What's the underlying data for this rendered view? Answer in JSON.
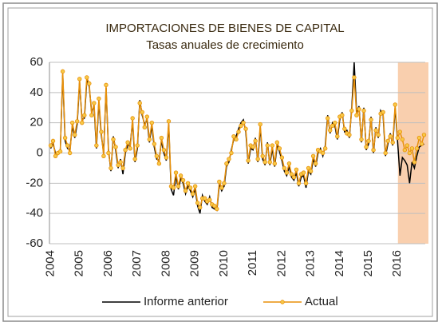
{
  "chart_data": {
    "type": "line",
    "title": "IMPORTACIONES DE BIENES DE CAPITAL",
    "subtitle": "Tasas anuales de crecimiento",
    "categories": [
      "2004",
      null,
      null,
      null,
      null,
      null,
      null,
      null,
      null,
      null,
      null,
      null,
      "2005",
      null,
      null,
      null,
      null,
      null,
      null,
      null,
      null,
      null,
      null,
      null,
      "2006",
      null,
      null,
      null,
      null,
      null,
      null,
      null,
      null,
      null,
      null,
      null,
      "2007",
      null,
      null,
      null,
      null,
      null,
      null,
      null,
      null,
      null,
      null,
      null,
      "2008",
      null,
      null,
      null,
      null,
      null,
      null,
      null,
      null,
      null,
      null,
      null,
      "2009",
      null,
      null,
      null,
      null,
      null,
      null,
      null,
      null,
      null,
      null,
      null,
      "2010",
      null,
      null,
      null,
      null,
      null,
      null,
      null,
      null,
      null,
      null,
      null,
      "2011",
      null,
      null,
      null,
      null,
      null,
      null,
      null,
      null,
      null,
      null,
      null,
      "2012",
      null,
      null,
      null,
      null,
      null,
      null,
      null,
      null,
      null,
      null,
      null,
      "2013",
      null,
      null,
      null,
      null,
      null,
      null,
      null,
      null,
      null,
      null,
      null,
      "2014",
      null,
      null,
      null,
      null,
      null,
      null,
      null,
      null,
      null,
      null,
      null,
      "2015",
      null,
      null,
      null,
      null,
      null,
      null,
      null,
      null,
      null,
      null,
      null,
      "2016",
      null,
      null,
      null,
      null,
      null,
      null,
      null,
      null,
      null,
      null,
      null
    ],
    "series": [
      {
        "name": "Informe anterior",
        "color": "#000000",
        "marker": false,
        "values": [
          3,
          6,
          0,
          -1,
          2,
          52,
          8,
          3,
          2,
          18,
          10,
          19,
          47,
          22,
          23,
          48,
          44,
          27,
          31,
          3,
          34,
          12,
          0,
          43,
          2,
          -12,
          11,
          2,
          -10,
          -4,
          -14,
          0,
          5,
          5,
          21,
          -6,
          3,
          35,
          25,
          19,
          22,
          7,
          18,
          4,
          -4,
          -5,
          8,
          0,
          -5,
          19,
          -24,
          -28,
          -15,
          -24,
          -17,
          -20,
          -27,
          -22,
          -25,
          -29,
          -24,
          -35,
          -40,
          -28,
          -32,
          -34,
          -29,
          -36,
          -37,
          -38,
          -21,
          -25,
          -22,
          -9,
          -6,
          2,
          9,
          11,
          16,
          20,
          22,
          14,
          -7,
          3,
          2,
          10,
          -6,
          17,
          -4,
          -8,
          7,
          -8,
          3,
          -9,
          5,
          1,
          -5,
          -12,
          -15,
          -9,
          -16,
          -18,
          -13,
          -22,
          -16,
          -15,
          -23,
          -12,
          -14,
          -4,
          -9,
          0,
          3,
          -2,
          5,
          25,
          13,
          20,
          18,
          9,
          22,
          27,
          14,
          15,
          10,
          30,
          60,
          27,
          31,
          7,
          30,
          2,
          6,
          24,
          0,
          17,
          10,
          28,
          25,
          -2,
          6,
          13,
          5,
          30,
          8,
          -15,
          -3,
          -5,
          -8,
          -20,
          -6,
          -10,
          -2,
          4,
          5,
          6
        ]
      },
      {
        "name": "Actual",
        "color": "#e8900a",
        "marker": true,
        "values": [
          5,
          8,
          -2,
          0,
          1,
          54,
          10,
          5,
          0,
          20,
          12,
          21,
          49,
          20,
          25,
          50,
          46,
          25,
          33,
          5,
          36,
          14,
          -2,
          45,
          0,
          -10,
          9,
          4,
          -8,
          -6,
          -10,
          2,
          7,
          3,
          23,
          -4,
          5,
          33,
          27,
          17,
          24,
          9,
          20,
          6,
          -2,
          -7,
          10,
          2,
          -3,
          21,
          -22,
          -23,
          -13,
          -22,
          -15,
          -18,
          -25,
          -20,
          -23,
          -27,
          -22,
          -33,
          -36,
          -30,
          -30,
          -32,
          -31,
          -34,
          -35,
          -37,
          -19,
          -23,
          -20,
          -7,
          -4,
          0,
          11,
          9,
          14,
          18,
          20,
          16,
          -5,
          5,
          4,
          8,
          -4,
          19,
          -2,
          -6,
          5,
          -6,
          5,
          -7,
          7,
          3,
          -3,
          -10,
          -13,
          -7,
          -14,
          -16,
          -11,
          -20,
          -14,
          -13,
          -20,
          -10,
          -12,
          -2,
          -7,
          2,
          1,
          0,
          3,
          23,
          15,
          18,
          20,
          11,
          24,
          25,
          16,
          13,
          12,
          28,
          50,
          25,
          29,
          9,
          28,
          4,
          8,
          22,
          2,
          15,
          12,
          26,
          27,
          0,
          8,
          11,
          7,
          32,
          10,
          14,
          9,
          2,
          5,
          0,
          3,
          -6,
          3,
          10,
          6,
          12
        ]
      }
    ],
    "ylim": [
      -60,
      60
    ],
    "yticks": [
      -60,
      -40,
      -20,
      0,
      20,
      40,
      60
    ],
    "grid": true,
    "legend": "bottom"
  }
}
